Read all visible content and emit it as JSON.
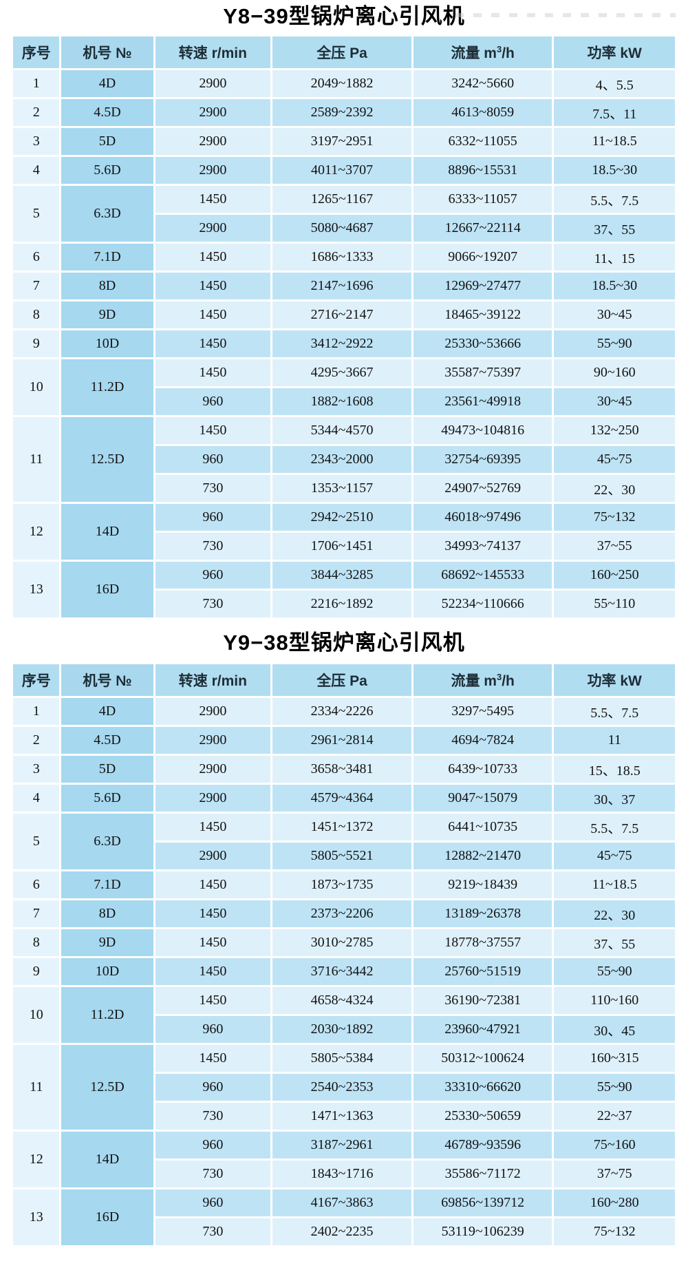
{
  "page": {
    "background": "#ffffff"
  },
  "colors": {
    "header_bg": "#b1ddf1",
    "header_model_bg": "#a9d8ee",
    "model_col_bg": "#a6d8ef",
    "index_col_bg": "#e5f4fc",
    "row_pale_bg": "#def0fa",
    "row_medium_bg": "#bee3f5",
    "grid_line": "#ffffff",
    "title_color": "#000000",
    "header_text": "#1d2d36",
    "cell_text": "#121212"
  },
  "tables": [
    {
      "title": "Y8−39型锅炉离心引风机",
      "headers": {
        "no": "序号",
        "model": "机号 №",
        "speed": "转速 r/min",
        "pressure": "全压 Pa",
        "flow_prefix": "流量 m",
        "flow_sup": "3",
        "flow_suffix": "/h",
        "power": "功率 kW"
      },
      "rows": [
        {
          "no": "1",
          "model": "4D",
          "subrows": [
            {
              "speed": "2900",
              "pressure": "2049~1882",
              "flow": "3242~5660",
              "power": "4、5.5"
            }
          ]
        },
        {
          "no": "2",
          "model": "4.5D",
          "subrows": [
            {
              "speed": "2900",
              "pressure": "2589~2392",
              "flow": "4613~8059",
              "power": "7.5、11"
            }
          ]
        },
        {
          "no": "3",
          "model": "5D",
          "subrows": [
            {
              "speed": "2900",
              "pressure": "3197~2951",
              "flow": "6332~11055",
              "power": "11~18.5"
            }
          ]
        },
        {
          "no": "4",
          "model": "5.6D",
          "subrows": [
            {
              "speed": "2900",
              "pressure": "4011~3707",
              "flow": "8896~15531",
              "power": "18.5~30"
            }
          ]
        },
        {
          "no": "5",
          "model": "6.3D",
          "subrows": [
            {
              "speed": "1450",
              "pressure": "1265~1167",
              "flow": "6333~11057",
              "power": "5.5、7.5"
            },
            {
              "speed": "2900",
              "pressure": "5080~4687",
              "flow": "12667~22114",
              "power": "37、55"
            }
          ]
        },
        {
          "no": "6",
          "model": "7.1D",
          "subrows": [
            {
              "speed": "1450",
              "pressure": "1686~1333",
              "flow": "9066~19207",
              "power": "11、15"
            }
          ]
        },
        {
          "no": "7",
          "model": "8D",
          "subrows": [
            {
              "speed": "1450",
              "pressure": "2147~1696",
              "flow": "12969~27477",
              "power": "18.5~30"
            }
          ]
        },
        {
          "no": "8",
          "model": "9D",
          "subrows": [
            {
              "speed": "1450",
              "pressure": "2716~2147",
              "flow": "18465~39122",
              "power": "30~45"
            }
          ]
        },
        {
          "no": "9",
          "model": "10D",
          "subrows": [
            {
              "speed": "1450",
              "pressure": "3412~2922",
              "flow": "25330~53666",
              "power": "55~90"
            }
          ]
        },
        {
          "no": "10",
          "model": "11.2D",
          "subrows": [
            {
              "speed": "1450",
              "pressure": "4295~3667",
              "flow": "35587~75397",
              "power": "90~160"
            },
            {
              "speed": "960",
              "pressure": "1882~1608",
              "flow": "23561~49918",
              "power": "30~45"
            }
          ]
        },
        {
          "no": "11",
          "model": "12.5D",
          "subrows": [
            {
              "speed": "1450",
              "pressure": "5344~4570",
              "flow": "49473~104816",
              "power": "132~250"
            },
            {
              "speed": "960",
              "pressure": "2343~2000",
              "flow": "32754~69395",
              "power": "45~75"
            },
            {
              "speed": "730",
              "pressure": "1353~1157",
              "flow": "24907~52769",
              "power": "22、30"
            }
          ]
        },
        {
          "no": "12",
          "model": "14D",
          "subrows": [
            {
              "speed": "960",
              "pressure": "2942~2510",
              "flow": "46018~97496",
              "power": "75~132"
            },
            {
              "speed": "730",
              "pressure": "1706~1451",
              "flow": "34993~74137",
              "power": "37~55"
            }
          ]
        },
        {
          "no": "13",
          "model": "16D",
          "subrows": [
            {
              "speed": "960",
              "pressure": "3844~3285",
              "flow": "68692~145533",
              "power": "160~250"
            },
            {
              "speed": "730",
              "pressure": "2216~1892",
              "flow": "52234~110666",
              "power": "55~110"
            }
          ]
        }
      ]
    },
    {
      "title": "Y9−38型锅炉离心引风机",
      "headers": {
        "no": "序号",
        "model": "机号 №",
        "speed": "转速 r/min",
        "pressure": "全压 Pa",
        "flow_prefix": "流量 m",
        "flow_sup": "3",
        "flow_suffix": "/h",
        "power": "功率 kW"
      },
      "rows": [
        {
          "no": "1",
          "model": "4D",
          "subrows": [
            {
              "speed": "2900",
              "pressure": "2334~2226",
              "flow": "3297~5495",
              "power": "5.5、7.5"
            }
          ]
        },
        {
          "no": "2",
          "model": "4.5D",
          "subrows": [
            {
              "speed": "2900",
              "pressure": "2961~2814",
              "flow": "4694~7824",
              "power": "11"
            }
          ]
        },
        {
          "no": "3",
          "model": "5D",
          "subrows": [
            {
              "speed": "2900",
              "pressure": "3658~3481",
              "flow": "6439~10733",
              "power": "15、18.5"
            }
          ]
        },
        {
          "no": "4",
          "model": "5.6D",
          "subrows": [
            {
              "speed": "2900",
              "pressure": "4579~4364",
              "flow": "9047~15079",
              "power": "30、37"
            }
          ]
        },
        {
          "no": "5",
          "model": "6.3D",
          "subrows": [
            {
              "speed": "1450",
              "pressure": "1451~1372",
              "flow": "6441~10735",
              "power": "5.5、7.5"
            },
            {
              "speed": "2900",
              "pressure": "5805~5521",
              "flow": "12882~21470",
              "power": "45~75"
            }
          ]
        },
        {
          "no": "6",
          "model": "7.1D",
          "subrows": [
            {
              "speed": "1450",
              "pressure": "1873~1735",
              "flow": "9219~18439",
              "power": "11~18.5"
            }
          ]
        },
        {
          "no": "7",
          "model": "8D",
          "subrows": [
            {
              "speed": "1450",
              "pressure": "2373~2206",
              "flow": "13189~26378",
              "power": "22、30"
            }
          ]
        },
        {
          "no": "8",
          "model": "9D",
          "subrows": [
            {
              "speed": "1450",
              "pressure": "3010~2785",
              "flow": "18778~37557",
              "power": "37、55"
            }
          ]
        },
        {
          "no": "9",
          "model": "10D",
          "subrows": [
            {
              "speed": "1450",
              "pressure": "3716~3442",
              "flow": "25760~51519",
              "power": "55~90"
            }
          ]
        },
        {
          "no": "10",
          "model": "11.2D",
          "subrows": [
            {
              "speed": "1450",
              "pressure": "4658~4324",
              "flow": "36190~72381",
              "power": "110~160"
            },
            {
              "speed": "960",
              "pressure": "2030~1892",
              "flow": "23960~47921",
              "power": "30、45"
            }
          ]
        },
        {
          "no": "11",
          "model": "12.5D",
          "subrows": [
            {
              "speed": "1450",
              "pressure": "5805~5384",
              "flow": "50312~100624",
              "power": "160~315"
            },
            {
              "speed": "960",
              "pressure": "2540~2353",
              "flow": "33310~66620",
              "power": "55~90"
            },
            {
              "speed": "730",
              "pressure": "1471~1363",
              "flow": "25330~50659",
              "power": "22~37"
            }
          ]
        },
        {
          "no": "12",
          "model": "14D",
          "subrows": [
            {
              "speed": "960",
              "pressure": "3187~2961",
              "flow": "46789~93596",
              "power": "75~160"
            },
            {
              "speed": "730",
              "pressure": "1843~1716",
              "flow": "35586~71172",
              "power": "37~75"
            }
          ]
        },
        {
          "no": "13",
          "model": "16D",
          "subrows": [
            {
              "speed": "960",
              "pressure": "4167~3863",
              "flow": "69856~139712",
              "power": "160~280"
            },
            {
              "speed": "730",
              "pressure": "2402~2235",
              "flow": "53119~106239",
              "power": "75~132"
            }
          ]
        }
      ]
    }
  ]
}
